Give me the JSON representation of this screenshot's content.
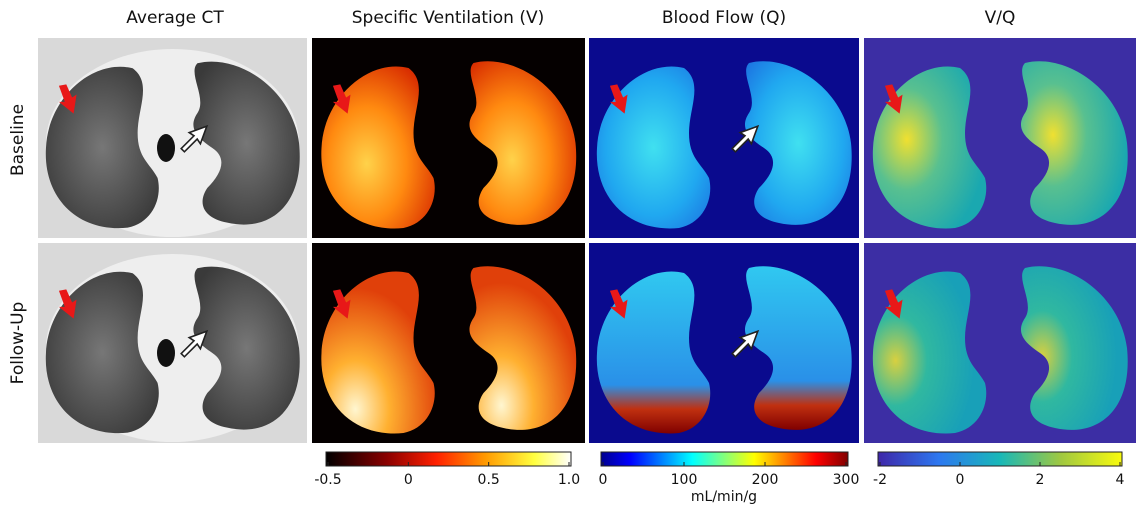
{
  "columns": [
    "Average CT",
    "Specific Ventilation (V)",
    "Blood Flow (Q)",
    "V/Q"
  ],
  "rows": [
    "Baseline",
    "Follow-Up"
  ],
  "colorbars": [
    {
      "ticks": [
        "-0.5",
        "0",
        "0.5",
        "1.0"
      ]
    },
    {
      "ticks": [
        "0",
        "100",
        "200",
        "300"
      ],
      "unit": "mL/min/g"
    },
    {
      "ticks": [
        "-2",
        "0",
        "2",
        "4"
      ]
    }
  ]
}
